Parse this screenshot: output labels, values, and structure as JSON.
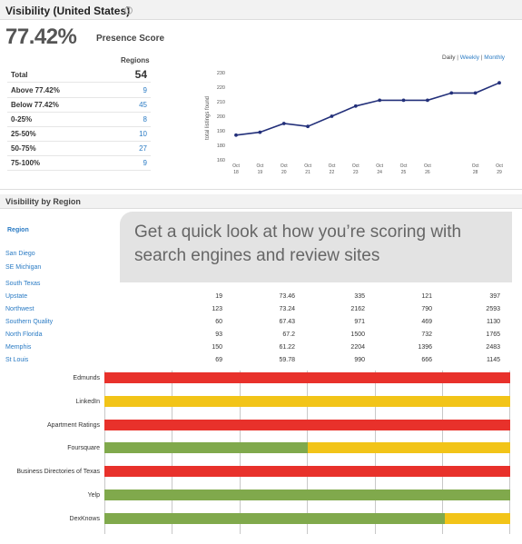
{
  "header": {
    "title": "Visibility (United States)",
    "help_icon": "?"
  },
  "presence": {
    "score": "77.42%",
    "label": "Presence Score"
  },
  "regions_summary": {
    "column_header": "Regions",
    "rows": [
      {
        "label": "Total",
        "value": "54"
      },
      {
        "label": "Above 77.42%",
        "value": "9"
      },
      {
        "label": "Below 77.42%",
        "value": "45"
      },
      {
        "label": "0-25%",
        "value": "8"
      },
      {
        "label": "25-50%",
        "value": "10"
      },
      {
        "label": "50-75%",
        "value": "27"
      },
      {
        "label": "75-100%",
        "value": "9"
      }
    ]
  },
  "period_links": {
    "daily": "Daily",
    "sep1": " | ",
    "weekly": "Weekly",
    "sep2": " | ",
    "monthly": "Monthly"
  },
  "chart_data": {
    "type": "line",
    "ylabel": "total listings found",
    "ylim": [
      160,
      230
    ],
    "yticks": [
      "230",
      "220",
      "210",
      "200",
      "190",
      "180",
      "160"
    ],
    "x": [
      "Oct 18",
      "Oct 19",
      "Oct 20",
      "Oct 21",
      "Oct 22",
      "Oct 23",
      "Oct 24",
      "Oct 25",
      "Oct 26",
      "",
      "Oct 28",
      "Oct 29"
    ],
    "x_top": [
      "Oct",
      "Oct",
      "Oct",
      "Oct",
      "Oct",
      "Oct",
      "Oct",
      "Oct",
      "Oct",
      "",
      "Oct",
      "Oct"
    ],
    "x_bottom": [
      "18",
      "19",
      "20",
      "21",
      "22",
      "23",
      "24",
      "25",
      "26",
      "",
      "28",
      "29"
    ],
    "series": [
      {
        "values": [
          187,
          189,
          195,
          193,
          200,
          207,
          211,
          211,
          211,
          216,
          216,
          223
        ],
        "color": "#23307a"
      }
    ],
    "grid": false
  },
  "section": {
    "title": "Visibility by Region"
  },
  "region_header": "Region",
  "regions_top": [
    "San Diego",
    "SE Michigan",
    "South Texas"
  ],
  "callout": {
    "text": "Get a quick look at how you’re scoring with search engines and review sites"
  },
  "region_rows": [
    {
      "name": "Upstate",
      "c1": "19",
      "c2": "73.46",
      "c3": "335",
      "c4": "121",
      "c5": "397"
    },
    {
      "name": "Northwest",
      "c1": "123",
      "c2": "73.24",
      "c3": "2162",
      "c4": "790",
      "c5": "2593"
    },
    {
      "name": "Southern Quality",
      "c1": "60",
      "c2": "67.43",
      "c3": "971",
      "c4": "469",
      "c5": "1130"
    },
    {
      "name": "North Florida",
      "c1": "93",
      "c2": "67.2",
      "c3": "1500",
      "c4": "732",
      "c5": "1765"
    },
    {
      "name": "Memphis",
      "c1": "150",
      "c2": "61.22",
      "c3": "2204",
      "c4": "1396",
      "c5": "2483"
    },
    {
      "name": "St Louis",
      "c1": "69",
      "c2": "59.78",
      "c3": "990",
      "c4": "666",
      "c5": "1145"
    }
  ],
  "sites": [
    {
      "name": "Edmunds",
      "segments": [
        {
          "color": "red",
          "fraction": 1.0
        }
      ]
    },
    {
      "name": "LinkedIn",
      "segments": [
        {
          "color": "yellow",
          "fraction": 1.0
        }
      ]
    },
    {
      "name": "Apartment Ratings",
      "segments": [
        {
          "color": "red",
          "fraction": 1.0
        }
      ]
    },
    {
      "name": "Foursquare",
      "segments": [
        {
          "color": "green",
          "fraction": 0.5
        },
        {
          "color": "yellow",
          "fraction": 0.5
        }
      ]
    },
    {
      "name": "Business Directories of Texas",
      "segments": [
        {
          "color": "red",
          "fraction": 1.0
        }
      ]
    },
    {
      "name": "Yelp",
      "segments": [
        {
          "color": "green",
          "fraction": 1.0
        }
      ]
    },
    {
      "name": "DexKnows",
      "segments": [
        {
          "color": "green",
          "fraction": 0.84
        },
        {
          "color": "yellow",
          "fraction": 0.16
        }
      ]
    }
  ],
  "colors": {
    "red": "#e8312b",
    "yellow": "#f2c418",
    "green": "#80a94c",
    "link": "#2a7bc4",
    "line": "#23307a"
  }
}
